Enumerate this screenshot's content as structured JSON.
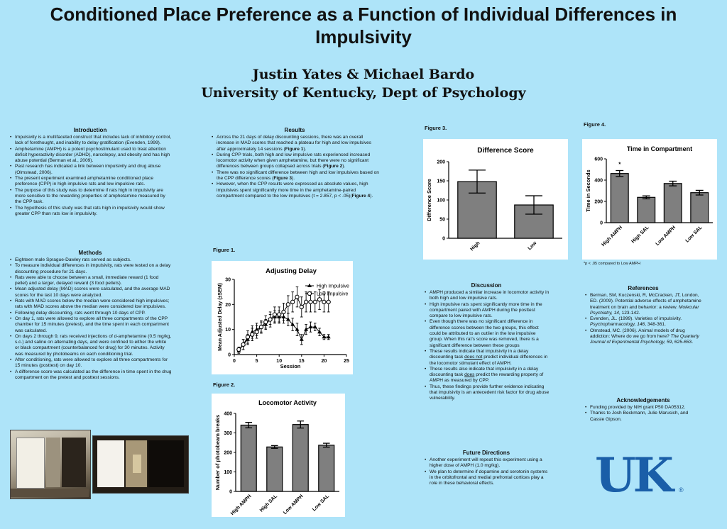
{
  "header": {
    "title_line1": "Conditioned Place Preference as a Function of Individual Differences in",
    "title_line2": "Impulsivity",
    "authors": "Justin Yates & Michael Bardo",
    "affiliation": "University of Kentucky, Dept of Psychology"
  },
  "introduction": {
    "heading": "Introduction",
    "bullets": [
      "Impulsivity is a multifaceted construct that includes lack of inhibitory control, lack of forethought, and inability to delay gratification (Evenden, 1999).",
      "Amphetamine (AMPH) is a potent psychostimulant used to treat attention deficit hyperactivity disorder (ADHD), narcolepsy, and obesity and has high abuse potential (Berman et al., 2009).",
      "Past research has indicated a link between impulsivity and drug abuse (Olmstead, 2006).",
      "The present experiment examined amphetamine conditioned place preference (CPP) in high impulsive rats and low impulsive rats.",
      "The purpose of this study was to determine if rats high in impulsivity are more sensitive to the rewarding properties of amphetamine measured by the CPP task.",
      "The hypothesis of this study was that rats high in impulsivity would show greater CPP than rats low in impulsivity."
    ]
  },
  "methods": {
    "heading": "Methods",
    "bullets": [
      "Eighteen male Sprague-Dawley rats served as subjects.",
      "To measure individual differences in impulsivity, rats were tested on a delay discounting procedure for 21 days.",
      "Rats were able to choose between a small, immediate reward (1 food pellet) and a larger, delayed reward (3 food pellets).",
      "Mean adjusted delay (MAD) scores were calculated, and the average MAD scores for the last 10 days were analyzed.",
      "Rats with MAD scores below the median were considered high impulsives; rats with MAD scores above the median were considered low impulsives.",
      "Following delay discounting, rats went through 10 days of CPP.",
      "On day 1, rats were allowed to explore all three compartments of the CPP chamber for 15 minutes (pretest), and the time spent in each compartment was calculated.",
      "On days 2 through 9, rats received injections of d-amphetamine (0.5 mg/kg, s.c.) and saline on alternating days, and were confined to either the white or black compartment (counterbalanced for drug) for 30 minutes.  Activity was measured by photobeams on each conditioning trial.",
      "After conditioning, rats were allowed to explore all three compartments for 15 minutes (posttest) on day 10.",
      "A difference score was calculated as the difference in time spent in the drug compartment on the pretest and posttest sessions."
    ]
  },
  "results": {
    "heading": "Results",
    "b1_pre": "Across the 21 days of delay discounting sessions, there was an overall increase in MAD scores that reached a plateau for high and low impulsives after approximately 14 sessions (",
    "b1_ref": "Figure 1",
    "b1_post": ").",
    "b2_pre": "During CPP trials, both high and low impulsive rats experienced increased locomotor activity when given amphetamine, but there were no significant differences between groups collapsed across trials (",
    "b2_ref": "Figure 2",
    "b2_post": ").",
    "b3_pre": "There was no significant difference between high and low impulsives based on the CPP difference scores (",
    "b3_ref": "Figure 3",
    "b3_post": ").",
    "b4_pre": "However, when the CPP results were expressed as absolute values, high impulsives spent significantly more time in the amphetamine-paired compartment compared to the low impulsives (t = 2.857, p < .05)(",
    "b4_ref": "Figure 4",
    "b4_post": ")."
  },
  "discussion": {
    "heading": "Discussion",
    "b1": "AMPH produced a similar increase in locomotor activity in both high and low impulsive rats.",
    "b2": "High impulsive rats spent significantly more time in the compartment paired with AMPH during the posttest compare to low impulsive rats.",
    "b3": "Even though there was no significant difference in difference scores between the two groups, this effect could be attributed to an outlier in the low impulsive group. When this rat’s score was removed, there is a significant difference between these groups",
    "b4_pre": "These results indicate that impulsivity in a delay discounting task ",
    "b4_u": "does not",
    "b4_post": " predict individual differences in the locomotor stimulant effect of AMPH.",
    "b5_pre": "These results also indicate that impulsivity in a delay discounting task ",
    "b5_u": "does",
    "b5_post": " predict the rewarding property of AMPH as measured by CPP.",
    "b6": "Thus, these findings provide further evidence indicating that impulsivity is an antecedent risk factor for drug abuse vulnerability."
  },
  "future": {
    "heading": "Future Directions",
    "bullets": [
      "Another experiment will repeat this experiment using a higher dose of AMPH (1.0 mg/kg).",
      "We plan to determine if dopamine and serotonin systems in the orbitofrontal and medial prefrontal cortices play a role in these behavioral effects."
    ]
  },
  "references": {
    "heading": "References",
    "r1_pre": "Berman, SM, Kuczenski, R, McCracken, JT, London, ED. (2009). Potential adverse effects of amphetamine treatment on brain and behavior: a review. ",
    "r1_it": "Molecular Psychiatry, 14",
    "r1_post": ", 123-142.",
    "r2_pre": "Evenden, JL. (1999). Varieties of impulsivity. ",
    "r2_it": "Psychopharmacology, 146",
    "r2_post": ", 348-361.",
    "r3_pre": "Olmstead, MC. (2006). Animal models of drug addiction: Where do we go from here? ",
    "r3_it": "The Quarterly Journal of Experimental Psychology, 59",
    "r3_post": ", 625-653."
  },
  "acknowledgements": {
    "heading": "Acknowledgements",
    "bullets": [
      "Funding provided by NIH grant P50 DA05312.",
      "Thanks to Josh Beckmann, Julie Marusich, and Cassie Gipson."
    ]
  },
  "figure_labels": {
    "fig1": "Figure 1.",
    "fig2": "Figure 2.",
    "fig3": "Figure 3.",
    "fig4": "Figure 4.",
    "fig4_note": "*p < .05 compared to Low AMPH"
  },
  "logo": {
    "text": "UK",
    "registered": "®",
    "color": "#1a5ea8"
  },
  "chart_data": [
    {
      "type": "line",
      "title": "Adjusting Delay",
      "xlabel": "Session",
      "ylabel": "Mean Adjusted Delay (±SEM)",
      "xlim": [
        0,
        25
      ],
      "xticks": [
        "0",
        "5",
        "10",
        "15",
        "20",
        "25"
      ],
      "ylim": [
        0,
        30
      ],
      "yticks": [
        "0",
        "10",
        "20",
        "30"
      ],
      "legend": "top-right",
      "series": [
        {
          "name": "High Impulsive",
          "marker": "triangle",
          "x": [
            1,
            2,
            3,
            4,
            5,
            6,
            7,
            8,
            9,
            10,
            11,
            12,
            13,
            14,
            15,
            16,
            17,
            18,
            19,
            20,
            21
          ],
          "y": [
            1.5,
            4,
            6,
            9,
            10,
            11,
            12,
            14,
            15,
            15,
            15,
            14,
            12,
            10,
            6,
            10,
            11,
            11,
            9,
            7,
            7
          ],
          "err": [
            1,
            2,
            2,
            2.5,
            2.5,
            2,
            2,
            2,
            2.5,
            2.5,
            2.5,
            2.5,
            2.5,
            2.5,
            2,
            2,
            2,
            1.5,
            1.5,
            1,
            1
          ]
        },
        {
          "name": "Low Impulsive",
          "marker": "circle",
          "x": [
            1,
            2,
            3,
            4,
            5,
            6,
            7,
            8,
            9,
            10,
            11,
            12,
            13,
            14,
            15,
            16,
            17,
            18,
            19,
            20,
            21
          ],
          "y": [
            2,
            4,
            7,
            8,
            9,
            11,
            13,
            14,
            16,
            16,
            17,
            20,
            21,
            23,
            19,
            21,
            21,
            21,
            22,
            21,
            21
          ],
          "err": [
            1,
            2,
            2.5,
            2.5,
            2.5,
            2.5,
            2.5,
            3,
            3,
            3,
            3.5,
            3.5,
            4,
            4,
            4,
            4,
            4,
            4,
            4,
            4,
            4
          ]
        }
      ]
    },
    {
      "type": "bar",
      "title": "Locomotor Activity",
      "ylabel": "Number of photobeam breaks",
      "categories": [
        "High AMPH",
        "High SAL",
        "Low AMPH",
        "Low SAL"
      ],
      "values": [
        340,
        228,
        343,
        237
      ],
      "errors": [
        14,
        7,
        18,
        10
      ],
      "ylim": [
        0,
        400
      ],
      "yticks": [
        "0",
        "100",
        "200",
        "300",
        "400"
      ]
    },
    {
      "type": "bar",
      "title": "Difference Score",
      "ylabel": "Difference  Score",
      "categories": [
        "High",
        "Low"
      ],
      "values": [
        148,
        87
      ],
      "errors": [
        30,
        24
      ],
      "ylim": [
        0,
        200
      ],
      "yticks": [
        "0",
        "50",
        "100",
        "150",
        "200"
      ]
    },
    {
      "type": "bar",
      "title": "Time in Compartment",
      "ylabel": "Time in Seconds",
      "categories": [
        "High AMPH",
        "High SAL",
        "Low AMPH",
        "Low SAL"
      ],
      "values": [
        462,
        238,
        368,
        282
      ],
      "errors": [
        28,
        14,
        22,
        22
      ],
      "ylim": [
        0,
        600
      ],
      "yticks": [
        "0",
        "200",
        "400",
        "600"
      ],
      "annotations": [
        "*"
      ]
    }
  ]
}
